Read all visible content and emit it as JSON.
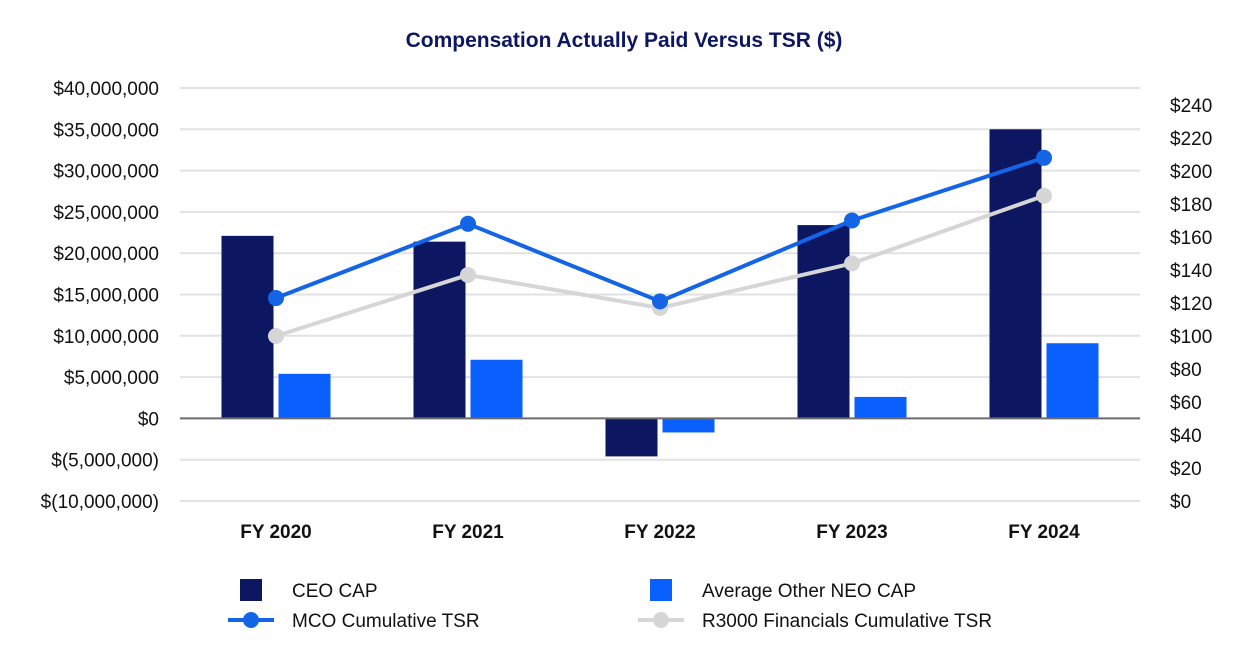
{
  "chart_data": {
    "type": "bar",
    "title": "Compensation Actually Paid Versus TSR ($)",
    "categories": [
      "FY 2020",
      "FY 2021",
      "FY 2022",
      "FY 2023",
      "FY 2024"
    ],
    "y_left": {
      "ylim": [
        -10000000,
        40000000
      ],
      "ticks": [
        40000000,
        35000000,
        30000000,
        25000000,
        20000000,
        15000000,
        10000000,
        5000000,
        0,
        -5000000,
        -10000000
      ],
      "tick_labels": [
        "$40,000,000",
        "$35,000,000",
        "$30,000,000",
        "$25,000,000",
        "$20,000,000",
        "$15,000,000",
        "$10,000,000",
        "$5,000,000",
        "$0",
        "$(5,000,000)",
        "$(10,000,000)"
      ]
    },
    "y_right": {
      "ylim": [
        0,
        240
      ],
      "ticks": [
        240,
        220,
        200,
        180,
        160,
        140,
        120,
        100,
        80,
        60,
        40,
        20,
        0
      ],
      "tick_labels": [
        "$240",
        "$220",
        "$200",
        "$180",
        "$160",
        "$140",
        "$120",
        "$100",
        "$80",
        "$60",
        "$40",
        "$20",
        "$0"
      ]
    },
    "grid": true,
    "legend_position": "bottom",
    "series": [
      {
        "name": "CEO CAP",
        "type": "bar",
        "axis": "left",
        "color": "#0d1660",
        "values": [
          22100000,
          21400000,
          -4600000,
          23400000,
          35000000
        ]
      },
      {
        "name": "Average Other NEO CAP",
        "type": "bar",
        "axis": "left",
        "color": "#0a5fff",
        "values": [
          5400000,
          7100000,
          -1700000,
          2600000,
          9100000
        ]
      },
      {
        "name": "MCO Cumulative TSR",
        "type": "line",
        "axis": "right",
        "color": "#1464e6",
        "values": [
          123,
          168,
          121,
          170,
          208
        ]
      },
      {
        "name": "R3000 Financials Cumulative TSR",
        "type": "line",
        "axis": "right",
        "color": "#d6d6d6",
        "values": [
          100,
          137,
          117,
          144,
          185
        ]
      }
    ]
  }
}
